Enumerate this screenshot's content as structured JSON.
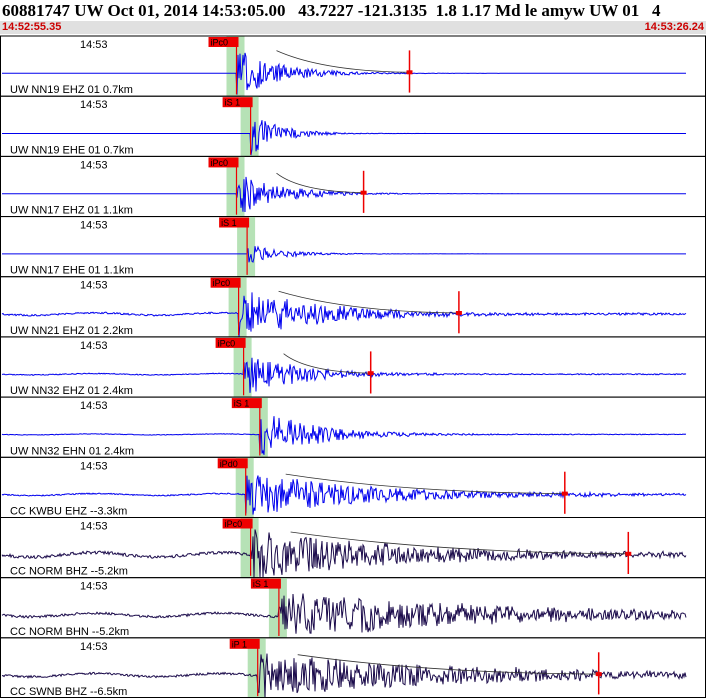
{
  "header": {
    "title": "60881747 UW Oct 01, 2014 14:53:05.00   43.7227 -121.3135  1.8 1.17 Md le amyw UW 01   4",
    "start_time": "14:52:55.35",
    "end_time": "14:53:26.24"
  },
  "colors": {
    "trace_blue": "#0000ee",
    "trace_dark": "#1a0a4a",
    "pick_red": "#ee0000",
    "window_green": "#b6e2b6",
    "border": "#000000"
  },
  "chart_data": {
    "type": "line",
    "title": "",
    "xlabel": "",
    "ylabel": "",
    "time_tick_label": "14:53",
    "grid": false,
    "traces": [
      {
        "label": "UW NN19 EHZ 01 0.7km",
        "pick": "iPc0",
        "color": "blue",
        "pick_pos": 0.335,
        "coda_pos": 0.58,
        "amp": 1.0,
        "noise": 0.0,
        "decay": 0.06
      },
      {
        "label": "UW NN19 EHE 01 0.7km",
        "pick": "iS 1",
        "color": "blue",
        "pick_pos": 0.355,
        "coda_pos": null,
        "amp": 0.9,
        "noise": 0.0,
        "decay": 0.04
      },
      {
        "label": "UW NN17 EHZ 01 1.1km",
        "pick": "iPc0",
        "color": "blue",
        "pick_pos": 0.335,
        "coda_pos": 0.515,
        "amp": 0.9,
        "noise": 0.0,
        "decay": 0.06
      },
      {
        "label": "UW NN17 EHE 01 1.1km",
        "pick": "iS 1",
        "color": "blue",
        "pick_pos": 0.35,
        "coda_pos": null,
        "amp": 0.4,
        "noise": 0.0,
        "decay": 0.05
      },
      {
        "label": "UW NN21 EHZ 01 2.2km",
        "pick": "iPc0",
        "color": "blue",
        "pick_pos": 0.338,
        "coda_pos": 0.65,
        "amp": 1.0,
        "noise": 0.08,
        "decay": 0.12
      },
      {
        "label": "UW NN32 EHZ 01 2.4km",
        "pick": "iPc0",
        "color": "blue",
        "pick_pos": 0.345,
        "coda_pos": 0.525,
        "amp": 0.9,
        "noise": 0.05,
        "decay": 0.08
      },
      {
        "label": "UW NN32 EHN 01 2.4km",
        "pick": "iS 1",
        "color": "blue",
        "pick_pos": 0.368,
        "coda_pos": null,
        "amp": 1.0,
        "noise": 0.03,
        "decay": 0.08
      },
      {
        "label": "CC KWBU EHZ --3.3km",
        "pick": "iPd0",
        "color": "blue",
        "pick_pos": 0.348,
        "coda_pos": 0.8,
        "amp": 0.9,
        "noise": 0.07,
        "decay": 0.18
      },
      {
        "label": "CC NORM BHZ --5.2km",
        "pick": "iPc0",
        "color": "dark",
        "pick_pos": 0.355,
        "coda_pos": 0.89,
        "amp": 1.0,
        "noise": 0.15,
        "decay": 0.22
      },
      {
        "label": "CC NORM BHN --5.2km",
        "pick": "iS 1",
        "color": "dark",
        "pick_pos": 0.395,
        "coda_pos": null,
        "amp": 1.0,
        "noise": 0.12,
        "decay": 0.3
      },
      {
        "label": "CC SWNB BHZ --6.5km",
        "pick": "iP 1",
        "color": "dark",
        "pick_pos": 0.365,
        "coda_pos": 0.848,
        "amp": 0.9,
        "noise": 0.12,
        "decay": 0.3
      }
    ]
  }
}
